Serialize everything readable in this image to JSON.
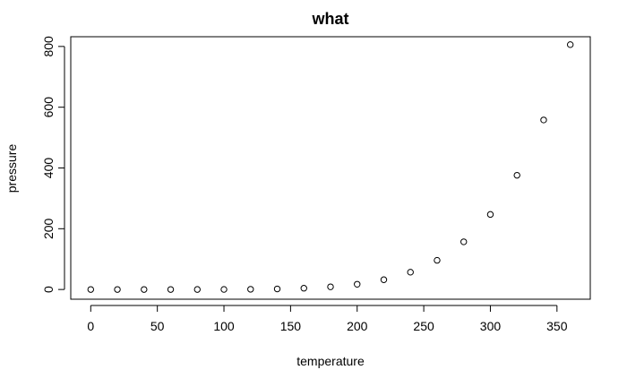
{
  "chart_data": {
    "type": "scatter",
    "title": "what",
    "xlabel": "temperature",
    "ylabel": "pressure",
    "xlim": [
      -15,
      375
    ],
    "ylim": [
      -32,
      832
    ],
    "xticks": [
      0,
      50,
      100,
      150,
      200,
      250,
      300,
      350
    ],
    "yticks": [
      0,
      200,
      400,
      600,
      800
    ],
    "x": [
      0,
      20,
      40,
      60,
      80,
      100,
      120,
      140,
      160,
      180,
      200,
      220,
      240,
      260,
      280,
      300,
      320,
      340,
      360
    ],
    "y": [
      0.0002,
      0.0012,
      0.006,
      0.03,
      0.09,
      0.27,
      0.75,
      1.85,
      4.2,
      8.8,
      17.3,
      32.1,
      57,
      96,
      157,
      247,
      376,
      558,
      806
    ],
    "grid": false,
    "legend": "none"
  }
}
